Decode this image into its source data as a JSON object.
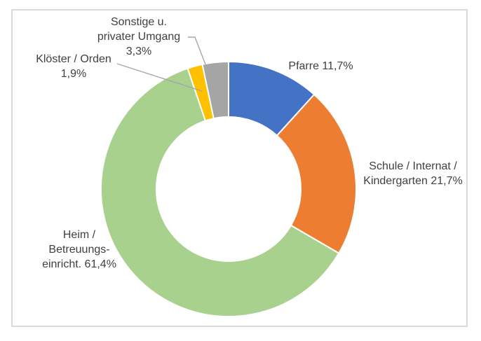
{
  "chart_data": {
    "type": "pie",
    "subtype": "donut",
    "title": "",
    "legend_position": "none",
    "unit": "%",
    "decimal_separator": ",",
    "direction": "clockwise",
    "start_angle_deg": 0,
    "donut_hole_ratio": 0.57,
    "categories": [
      "Pfarre",
      "Schule / Internat / Kindergarten",
      "Heim / Betreuungseinricht.",
      "Klöster / Orden",
      "Sonstige u. privater Umgang"
    ],
    "values": [
      11.7,
      21.7,
      61.4,
      1.9,
      3.3
    ],
    "colors": [
      "#4472C4",
      "#ED7D31",
      "#A9D18E",
      "#FFC000",
      "#A5A5A5"
    ],
    "segment_ids": [
      "pfarre",
      "schule",
      "heim",
      "kloester",
      "sonstige"
    ],
    "labels": [
      {
        "id": "pfarre",
        "text": "Pfarre 11,7%"
      },
      {
        "id": "schule",
        "text": "Schule / Internat /\nKindergarten 21,7%"
      },
      {
        "id": "heim",
        "text": "Heim /\nBetreuungs-\neinricht. 61,4%"
      },
      {
        "id": "kloester",
        "text": "Klöster / Orden\n1,9%"
      },
      {
        "id": "sonstige",
        "text": "Sonstige u.\nprivater Umgang\n3,3%"
      }
    ]
  },
  "styles": {
    "label_text_color": "#404040",
    "leader_line_color": "#A6A6A6",
    "slice_stroke_color": "#FFFFFF",
    "frame_border_color": "#D9D9D9",
    "background_color": "#FFFFFF"
  }
}
